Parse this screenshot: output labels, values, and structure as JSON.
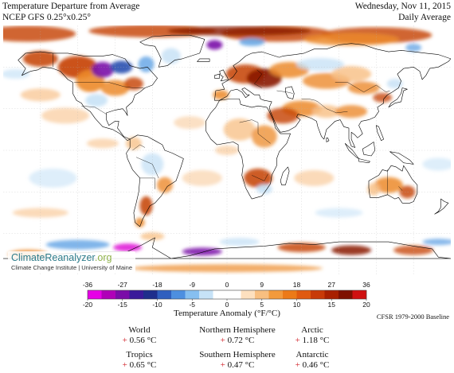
{
  "header": {
    "title_line1": "Temperature Departure from Average",
    "title_line2": "NCEP GFS 0.25°x0.25°",
    "date": "Wednesday, Nov 11, 2015",
    "period": "Daily Average"
  },
  "watermark": {
    "logo_main": "ClimateReanalyzer",
    "logo_tld": ".org",
    "institute": "Climate Change Institute | University of Maine"
  },
  "colorbar": {
    "title": "Temperature Anomaly (°F/°C)",
    "f_ticks": [
      "-36",
      "-27",
      "-18",
      "-9",
      "0",
      "9",
      "18",
      "27",
      "36"
    ],
    "c_ticks": [
      "-20",
      "-15",
      "-10",
      "-5",
      "0",
      "5",
      "10",
      "15",
      "20"
    ],
    "colors": [
      "#e600e6",
      "#b000b8",
      "#7a0ca8",
      "#3a1a9a",
      "#1e2e8c",
      "#2f5fbf",
      "#4d8fe0",
      "#86bff0",
      "#c6e2f7",
      "#ffffff",
      "#ffffff",
      "#fde0bf",
      "#f8bf80",
      "#f29a3c",
      "#ec7a18",
      "#e05a10",
      "#c83a08",
      "#a82000",
      "#7e1000",
      "#d01010"
    ],
    "baseline": "CFSR 1979-2000 Baseline"
  },
  "stats": [
    {
      "label": "World",
      "sign": "+",
      "value": "0.56 °C"
    },
    {
      "label": "Northern Hemisphere",
      "sign": "+",
      "value": "0.72 °C"
    },
    {
      "label": "Arctic",
      "sign": "+",
      "value": "1.18 °C"
    },
    {
      "label": "Tropics",
      "sign": "+",
      "value": "0.65 °C"
    },
    {
      "label": "Southern Hemisphere",
      "sign": "+",
      "value": "0.47 °C"
    },
    {
      "label": "Antarctic",
      "sign": "+",
      "value": "0.46 °C"
    }
  ],
  "map_colors": {
    "ocean_bg": "#ffffff",
    "warm_light": "#f8c28a",
    "warm": "#ec8a2a",
    "warm_strong": "#c84a0a",
    "warm_extreme": "#8a1a00",
    "cool_light": "#c8e2f6",
    "cool": "#6aa8e6",
    "cool_strong": "#2a4fb0",
    "cool_extreme": "#7a10a8",
    "magenta": "#e020d8",
    "coast": "#000000",
    "grid": "#b0b0b0"
  }
}
